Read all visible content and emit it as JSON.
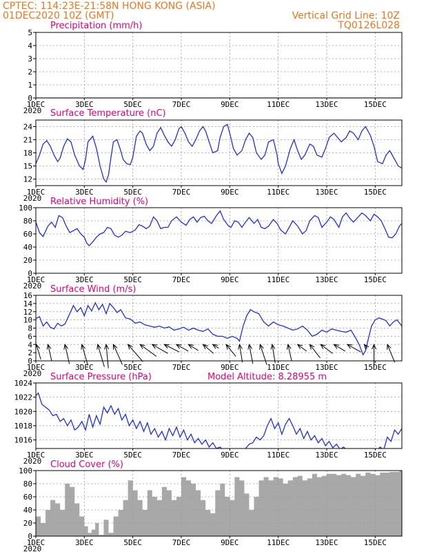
{
  "header": {
    "line1_left": "CPTEC:   114:23E-21:58N   HONG KONG (ASIA)",
    "line2_left": "01DEC2020 10Z (GMT)",
    "line1_right": "Vertical Grid Line: 10Z",
    "line2_right": "TQ0126L028"
  },
  "colors": {
    "header": "#e87722",
    "panel_title": "#e0007a",
    "series": "#1f2fe0",
    "cloud_fill": "#a8a8a8",
    "grid": "#9a9a9a",
    "wind_arrow": "#000000"
  },
  "x_axis": {
    "ticks": [
      {
        "day": 1,
        "label": "1DEC"
      },
      {
        "day": 3,
        "label": "3DEC"
      },
      {
        "day": 5,
        "label": "5DEC"
      },
      {
        "day": 7,
        "label": "7DEC"
      },
      {
        "day": 9,
        "label": "9DEC"
      },
      {
        "day": 11,
        "label": "11DEC"
      },
      {
        "day": 13,
        "label": "13DEC"
      },
      {
        "day": 15,
        "label": "15DEC"
      }
    ],
    "year_label": "2020"
  },
  "chart_data": [
    {
      "type": "line",
      "title": "Precipitation (mm/h)",
      "ylim": [
        0,
        5
      ],
      "yticks": [
        0,
        1,
        2,
        3,
        4,
        5
      ],
      "grid": true,
      "x": [
        1,
        16.1
      ],
      "values": [
        0,
        0
      ]
    },
    {
      "type": "line",
      "title": "Surface Temperature (nC)",
      "ylim": [
        10.5,
        25.5
      ],
      "yticks": [
        12,
        15,
        18,
        21,
        24
      ],
      "grid": true,
      "x": [
        1.0,
        1.15,
        1.3,
        1.45,
        1.6,
        1.75,
        1.9,
        2.0,
        2.15,
        2.3,
        2.45,
        2.6,
        2.8,
        2.95,
        3.05,
        3.15,
        3.35,
        3.5,
        3.65,
        3.8,
        3.9,
        4.0,
        4.1,
        4.2,
        4.35,
        4.5,
        4.6,
        4.75,
        4.9,
        5.0,
        5.15,
        5.3,
        5.4,
        5.55,
        5.7,
        5.85,
        6.0,
        6.15,
        6.3,
        6.45,
        6.6,
        6.75,
        6.9,
        7.0,
        7.15,
        7.3,
        7.45,
        7.6,
        7.75,
        7.9,
        8.0,
        8.15,
        8.3,
        8.5,
        8.6,
        8.75,
        8.9,
        9.0,
        9.15,
        9.3,
        9.5,
        9.65,
        9.8,
        9.95,
        10.1,
        10.3,
        10.45,
        10.6,
        10.8,
        10.95,
        11.0,
        11.15,
        11.3,
        11.5,
        11.65,
        11.8,
        11.95,
        12.1,
        12.3,
        12.45,
        12.6,
        12.8,
        12.95,
        13.1,
        13.3,
        13.45,
        13.6,
        13.8,
        13.95,
        14.1,
        14.3,
        14.45,
        14.6,
        14.8,
        14.95,
        15.1,
        15.3,
        15.45,
        15.6,
        15.8,
        15.95,
        16.1
      ],
      "values": [
        15.5,
        17.5,
        20.0,
        20.8,
        19.5,
        17.5,
        16.0,
        16.8,
        19.5,
        21.2,
        20.5,
        17.5,
        15.0,
        14.2,
        16.5,
        20.5,
        21.8,
        19.0,
        15.0,
        12.0,
        11.3,
        13.0,
        17.0,
        20.5,
        21.0,
        18.5,
        16.5,
        15.5,
        15.3,
        17.0,
        21.8,
        23.0,
        22.5,
        20.0,
        18.5,
        19.5,
        22.5,
        23.8,
        22.0,
        20.5,
        19.5,
        21.0,
        23.5,
        24.0,
        22.5,
        20.5,
        19.5,
        21.0,
        23.0,
        24.0,
        23.0,
        20.5,
        18.0,
        18.5,
        21.5,
        24.0,
        24.5,
        22.5,
        19.0,
        17.5,
        18.5,
        21.0,
        22.5,
        21.5,
        18.0,
        16.5,
        17.5,
        20.5,
        21.0,
        17.5,
        15.5,
        13.3,
        15.0,
        19.0,
        21.0,
        18.5,
        16.5,
        17.5,
        20.0,
        19.5,
        17.5,
        17.0,
        19.0,
        21.5,
        22.5,
        21.5,
        20.5,
        21.5,
        23.0,
        22.5,
        21.0,
        23.0,
        24.0,
        22.0,
        19.5,
        16.0,
        15.5,
        17.5,
        18.5,
        16.5,
        15.0,
        14.5
      ]
    },
    {
      "type": "line",
      "title": "Relative Humidity (%)",
      "ylim": [
        0,
        100
      ],
      "yticks": [
        0,
        20,
        40,
        60,
        80,
        100
      ],
      "grid": true,
      "x": [
        1.0,
        1.15,
        1.3,
        1.5,
        1.65,
        1.8,
        1.95,
        2.1,
        2.25,
        2.4,
        2.55,
        2.7,
        2.85,
        3.0,
        3.1,
        3.2,
        3.35,
        3.5,
        3.65,
        3.8,
        3.95,
        4.1,
        4.25,
        4.4,
        4.55,
        4.7,
        4.9,
        5.1,
        5.25,
        5.4,
        5.55,
        5.7,
        5.85,
        6.0,
        6.15,
        6.3,
        6.45,
        6.6,
        6.8,
        7.0,
        7.2,
        7.35,
        7.5,
        7.65,
        7.8,
        7.95,
        8.1,
        8.25,
        8.45,
        8.6,
        8.75,
        8.95,
        9.05,
        9.2,
        9.35,
        9.5,
        9.65,
        9.8,
        10.0,
        10.15,
        10.3,
        10.45,
        10.6,
        10.8,
        10.95,
        11.1,
        11.3,
        11.45,
        11.6,
        11.8,
        12.0,
        12.15,
        12.3,
        12.5,
        12.65,
        12.8,
        13.0,
        13.15,
        13.3,
        13.5,
        13.65,
        13.8,
        13.95,
        14.1,
        14.3,
        14.45,
        14.6,
        14.8,
        14.95,
        15.1,
        15.25,
        15.4,
        15.55,
        15.7,
        15.85,
        16.0,
        16.1
      ],
      "values": [
        78,
        62,
        56,
        72,
        78,
        70,
        88,
        85,
        72,
        62,
        65,
        68,
        60,
        55,
        46,
        42,
        48,
        55,
        60,
        62,
        70,
        68,
        58,
        55,
        58,
        64,
        62,
        66,
        74,
        72,
        68,
        72,
        86,
        80,
        68,
        70,
        70,
        80,
        86,
        78,
        73,
        82,
        86,
        78,
        85,
        87,
        80,
        76,
        88,
        95,
        82,
        72,
        70,
        80,
        78,
        70,
        78,
        85,
        76,
        82,
        70,
        68,
        72,
        82,
        76,
        66,
        60,
        70,
        80,
        72,
        60,
        65,
        80,
        88,
        85,
        70,
        78,
        86,
        82,
        70,
        86,
        92,
        84,
        78,
        86,
        92,
        88,
        80,
        90,
        86,
        80,
        68,
        55,
        54,
        60,
        72,
        76
      ]
    },
    {
      "type": "line",
      "title": "Surface Wind (m/s)",
      "ylim": [
        0,
        16
      ],
      "yticks": [
        0,
        2,
        4,
        6,
        8,
        10,
        12,
        14,
        16
      ],
      "grid": true,
      "x": [
        1.0,
        1.15,
        1.3,
        1.45,
        1.6,
        1.75,
        1.9,
        2.05,
        2.2,
        2.4,
        2.55,
        2.7,
        2.85,
        3.0,
        3.15,
        3.3,
        3.45,
        3.6,
        3.75,
        3.9,
        4.05,
        4.2,
        4.35,
        4.5,
        4.7,
        4.9,
        5.1,
        5.3,
        5.5,
        5.7,
        5.9,
        6.1,
        6.3,
        6.5,
        6.7,
        6.9,
        7.1,
        7.3,
        7.5,
        7.7,
        7.9,
        8.1,
        8.3,
        8.5,
        8.7,
        8.9,
        9.1,
        9.3,
        9.4,
        9.55,
        9.7,
        9.85,
        10.0,
        10.2,
        10.4,
        10.6,
        10.8,
        11.0,
        11.2,
        11.4,
        11.6,
        11.8,
        12.0,
        12.2,
        12.4,
        12.6,
        12.8,
        13.0,
        13.2,
        13.4,
        13.6,
        13.8,
        14.0,
        14.2,
        14.35,
        14.5,
        14.6,
        14.7,
        14.85,
        15.0,
        15.15,
        15.3,
        15.45,
        15.6,
        15.75,
        15.9,
        16.1
      ],
      "values": [
        10.3,
        10.8,
        8.5,
        9.5,
        8.2,
        7.8,
        9.2,
        8.5,
        9.0,
        11.5,
        13.5,
        12.0,
        13.0,
        11.0,
        13.5,
        12.2,
        14.2,
        12.5,
        13.8,
        11.5,
        14.0,
        13.0,
        11.8,
        12.5,
        10.5,
        10.2,
        9.2,
        9.5,
        8.8,
        8.5,
        8.2,
        8.5,
        8.0,
        8.3,
        7.5,
        7.8,
        8.2,
        7.5,
        8.0,
        7.5,
        7.2,
        7.8,
        6.5,
        6.0,
        6.0,
        5.5,
        6.0,
        5.5,
        4.8,
        8.5,
        11.0,
        12.5,
        12.0,
        11.5,
        9.5,
        8.5,
        9.5,
        8.8,
        8.5,
        8.0,
        7.5,
        7.8,
        8.5,
        7.5,
        6.0,
        6.5,
        7.5,
        7.0,
        7.8,
        7.5,
        7.2,
        7.0,
        7.5,
        5.5,
        3.8,
        1.5,
        2.5,
        5.0,
        8.5,
        10.0,
        10.5,
        10.2,
        9.8,
        8.5,
        9.5,
        10.0,
        8.5
      ],
      "wind_vectors": [
        {
          "x": 1.02,
          "u": 0.6,
          "v": -2.0
        },
        {
          "x": 1.5,
          "u": 0.5,
          "v": -2.2
        },
        {
          "x": 2.2,
          "u": 0.6,
          "v": -2.6
        },
        {
          "x": 2.9,
          "u": 0.8,
          "v": -2.8
        },
        {
          "x": 3.55,
          "u": 0.9,
          "v": -3.0
        },
        {
          "x": 3.9,
          "u": 0.3,
          "v": -3.2
        },
        {
          "x": 4.2,
          "u": 1.2,
          "v": -2.7
        },
        {
          "x": 4.8,
          "u": 2.0,
          "v": -2.3
        },
        {
          "x": 5.3,
          "u": 2.2,
          "v": -1.6
        },
        {
          "x": 5.8,
          "u": 2.1,
          "v": -1.2
        },
        {
          "x": 6.3,
          "u": 2.0,
          "v": -1.0
        },
        {
          "x": 6.8,
          "u": 1.6,
          "v": -0.9
        },
        {
          "x": 7.3,
          "u": 1.3,
          "v": -0.8
        },
        {
          "x": 7.9,
          "u": 1.4,
          "v": -1.2
        },
        {
          "x": 8.3,
          "u": 0.8,
          "v": -0.5
        },
        {
          "x": 8.85,
          "u": 1.3,
          "v": -1.6
        },
        {
          "x": 9.4,
          "u": 0.4,
          "v": -2.4
        },
        {
          "x": 9.8,
          "u": 0.5,
          "v": -2.6
        },
        {
          "x": 10.25,
          "u": 0.9,
          "v": -2.7
        },
        {
          "x": 10.75,
          "u": 0.4,
          "v": -2.5
        },
        {
          "x": 11.4,
          "u": 0.5,
          "v": -2.2
        },
        {
          "x": 11.8,
          "u": 1.2,
          "v": -0.9
        },
        {
          "x": 12.3,
          "u": 1.4,
          "v": -1.8
        },
        {
          "x": 12.75,
          "u": 1.6,
          "v": -1.2
        },
        {
          "x": 13.3,
          "u": 1.5,
          "v": -0.9
        },
        {
          "x": 13.85,
          "u": 1.8,
          "v": -1.0
        },
        {
          "x": 14.55,
          "u": 0.4,
          "v": -0.5
        },
        {
          "x": 14.95,
          "u": 0.0,
          "v": -3.0
        },
        {
          "x": 15.5,
          "u": 1.0,
          "v": -2.4
        }
      ]
    },
    {
      "type": "line",
      "title": "Surface Pressure (hPa)",
      "annotation": "Model Altitude: 8.28955 m",
      "ylim": [
        1014.8,
        1024
      ],
      "yticks": [
        1016,
        1018,
        1020,
        1022,
        1024
      ],
      "grid": true,
      "x": [
        1.0,
        1.1,
        1.25,
        1.4,
        1.55,
        1.7,
        1.85,
        2.0,
        2.15,
        2.3,
        2.45,
        2.6,
        2.75,
        2.9,
        3.05,
        3.2,
        3.35,
        3.5,
        3.65,
        3.8,
        3.95,
        4.1,
        4.25,
        4.4,
        4.55,
        4.7,
        4.85,
        5.0,
        5.15,
        5.3,
        5.45,
        5.6,
        5.75,
        5.9,
        6.05,
        6.2,
        6.35,
        6.5,
        6.65,
        6.8,
        6.95,
        7.1,
        7.25,
        7.4,
        7.55,
        7.7,
        7.85,
        8.0,
        8.15,
        8.3,
        8.45,
        8.6,
        8.75,
        8.9,
        9.05,
        9.2,
        9.35,
        9.5,
        9.65,
        9.8,
        9.95,
        10.1,
        10.25,
        10.4,
        10.55,
        10.7,
        10.85,
        11.0,
        11.15,
        11.3,
        11.45,
        11.6,
        11.75,
        11.9,
        12.05,
        12.2,
        12.35,
        12.5,
        12.65,
        12.8,
        12.95,
        13.1,
        13.25,
        13.4,
        13.55,
        13.7,
        13.85,
        14.0,
        14.15,
        14.3,
        14.45,
        14.6,
        14.75,
        14.9,
        15.05,
        15.2,
        15.35,
        15.5,
        15.65,
        15.8,
        15.95,
        16.1
      ],
      "values": [
        1022.2,
        1022.6,
        1021.0,
        1020.6,
        1020.2,
        1019.4,
        1019.6,
        1018.6,
        1019.0,
        1018.0,
        1018.8,
        1017.4,
        1017.8,
        1018.6,
        1017.4,
        1019.6,
        1017.8,
        1019.4,
        1018.2,
        1020.6,
        1019.8,
        1020.8,
        1019.6,
        1020.4,
        1018.8,
        1019.6,
        1018.0,
        1018.8,
        1017.6,
        1018.6,
        1017.2,
        1018.4,
        1016.8,
        1017.6,
        1016.4,
        1017.2,
        1016.0,
        1017.6,
        1016.6,
        1017.8,
        1016.4,
        1017.4,
        1016.0,
        1016.8,
        1015.6,
        1016.2,
        1015.4,
        1016.0,
        1015.0,
        1015.6,
        1014.8,
        1015.0,
        1014.5,
        1014.6,
        1014.3,
        1014.3,
        1014.2,
        1014.3,
        1014.8,
        1015.4,
        1015.6,
        1016.4,
        1016.0,
        1016.6,
        1018.0,
        1019.0,
        1017.6,
        1018.4,
        1016.8,
        1018.2,
        1019.0,
        1018.0,
        1016.8,
        1017.6,
        1016.2,
        1017.2,
        1016.0,
        1016.6,
        1015.6,
        1016.2,
        1015.2,
        1015.8,
        1014.9,
        1015.4,
        1014.7,
        1015.0,
        1014.5,
        1014.7,
        1014.4,
        1014.6,
        1014.4,
        1014.5,
        1014.3,
        1014.4,
        1014.4,
        1015.0,
        1014.6,
        1016.4,
        1015.8,
        1017.4,
        1016.8,
        1017.6
      ]
    },
    {
      "type": "area",
      "title": "Cloud Cover (%)",
      "ylim": [
        0,
        100
      ],
      "yticks": [
        0,
        20,
        40,
        60,
        80,
        100
      ],
      "grid": true,
      "x": [
        1.0,
        1.2,
        1.4,
        1.6,
        1.8,
        2.0,
        2.2,
        2.4,
        2.6,
        2.8,
        3.0,
        3.15,
        3.3,
        3.45,
        3.6,
        3.8,
        4.0,
        4.2,
        4.4,
        4.6,
        4.8,
        5.0,
        5.2,
        5.4,
        5.6,
        5.8,
        6.0,
        6.2,
        6.4,
        6.6,
        6.8,
        7.0,
        7.2,
        7.4,
        7.6,
        7.8,
        8.0,
        8.2,
        8.4,
        8.6,
        8.8,
        9.0,
        9.2,
        9.4,
        9.6,
        9.8,
        10.0,
        10.2,
        10.4,
        10.6,
        10.8,
        11.0,
        11.2,
        11.4,
        11.6,
        11.8,
        12.0,
        12.2,
        12.4,
        12.6,
        12.8,
        13.0,
        13.2,
        13.4,
        13.6,
        13.8,
        14.0,
        14.2,
        14.4,
        14.6,
        14.8,
        15.0,
        15.2,
        15.4,
        15.6,
        15.8,
        16.0,
        16.1
      ],
      "values": [
        30,
        20,
        40,
        55,
        50,
        40,
        80,
        75,
        50,
        30,
        15,
        5,
        10,
        20,
        2,
        25,
        5,
        30,
        40,
        55,
        85,
        70,
        55,
        40,
        70,
        60,
        55,
        75,
        70,
        55,
        60,
        90,
        85,
        80,
        70,
        55,
        40,
        35,
        70,
        80,
        60,
        55,
        90,
        85,
        65,
        40,
        60,
        85,
        90,
        85,
        90,
        88,
        80,
        85,
        90,
        92,
        85,
        88,
        95,
        90,
        92,
        95,
        95,
        93,
        95,
        93,
        90,
        95,
        92,
        97,
        95,
        93,
        97,
        97,
        98,
        98,
        100,
        100
      ]
    }
  ]
}
